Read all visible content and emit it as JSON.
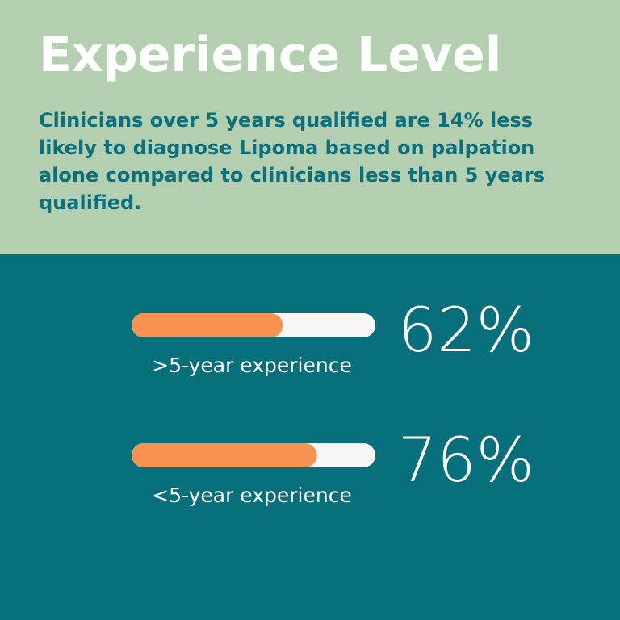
{
  "chart_data": {
    "type": "bar",
    "title": "Experience Level",
    "subtitle": "Clinicians over 5 years qualified are 14% less likely to diagnose Lipoma based on palpation alone compared to clinicians less than 5 years qualified.",
    "categories": [
      ">5-year experience",
      "<5-year experience"
    ],
    "values": [
      62,
      76
    ],
    "value_labels": [
      "62%",
      "76%"
    ],
    "xlim": [
      0,
      100
    ],
    "color": "#f79250",
    "track_color": "#f8f6f4"
  }
}
